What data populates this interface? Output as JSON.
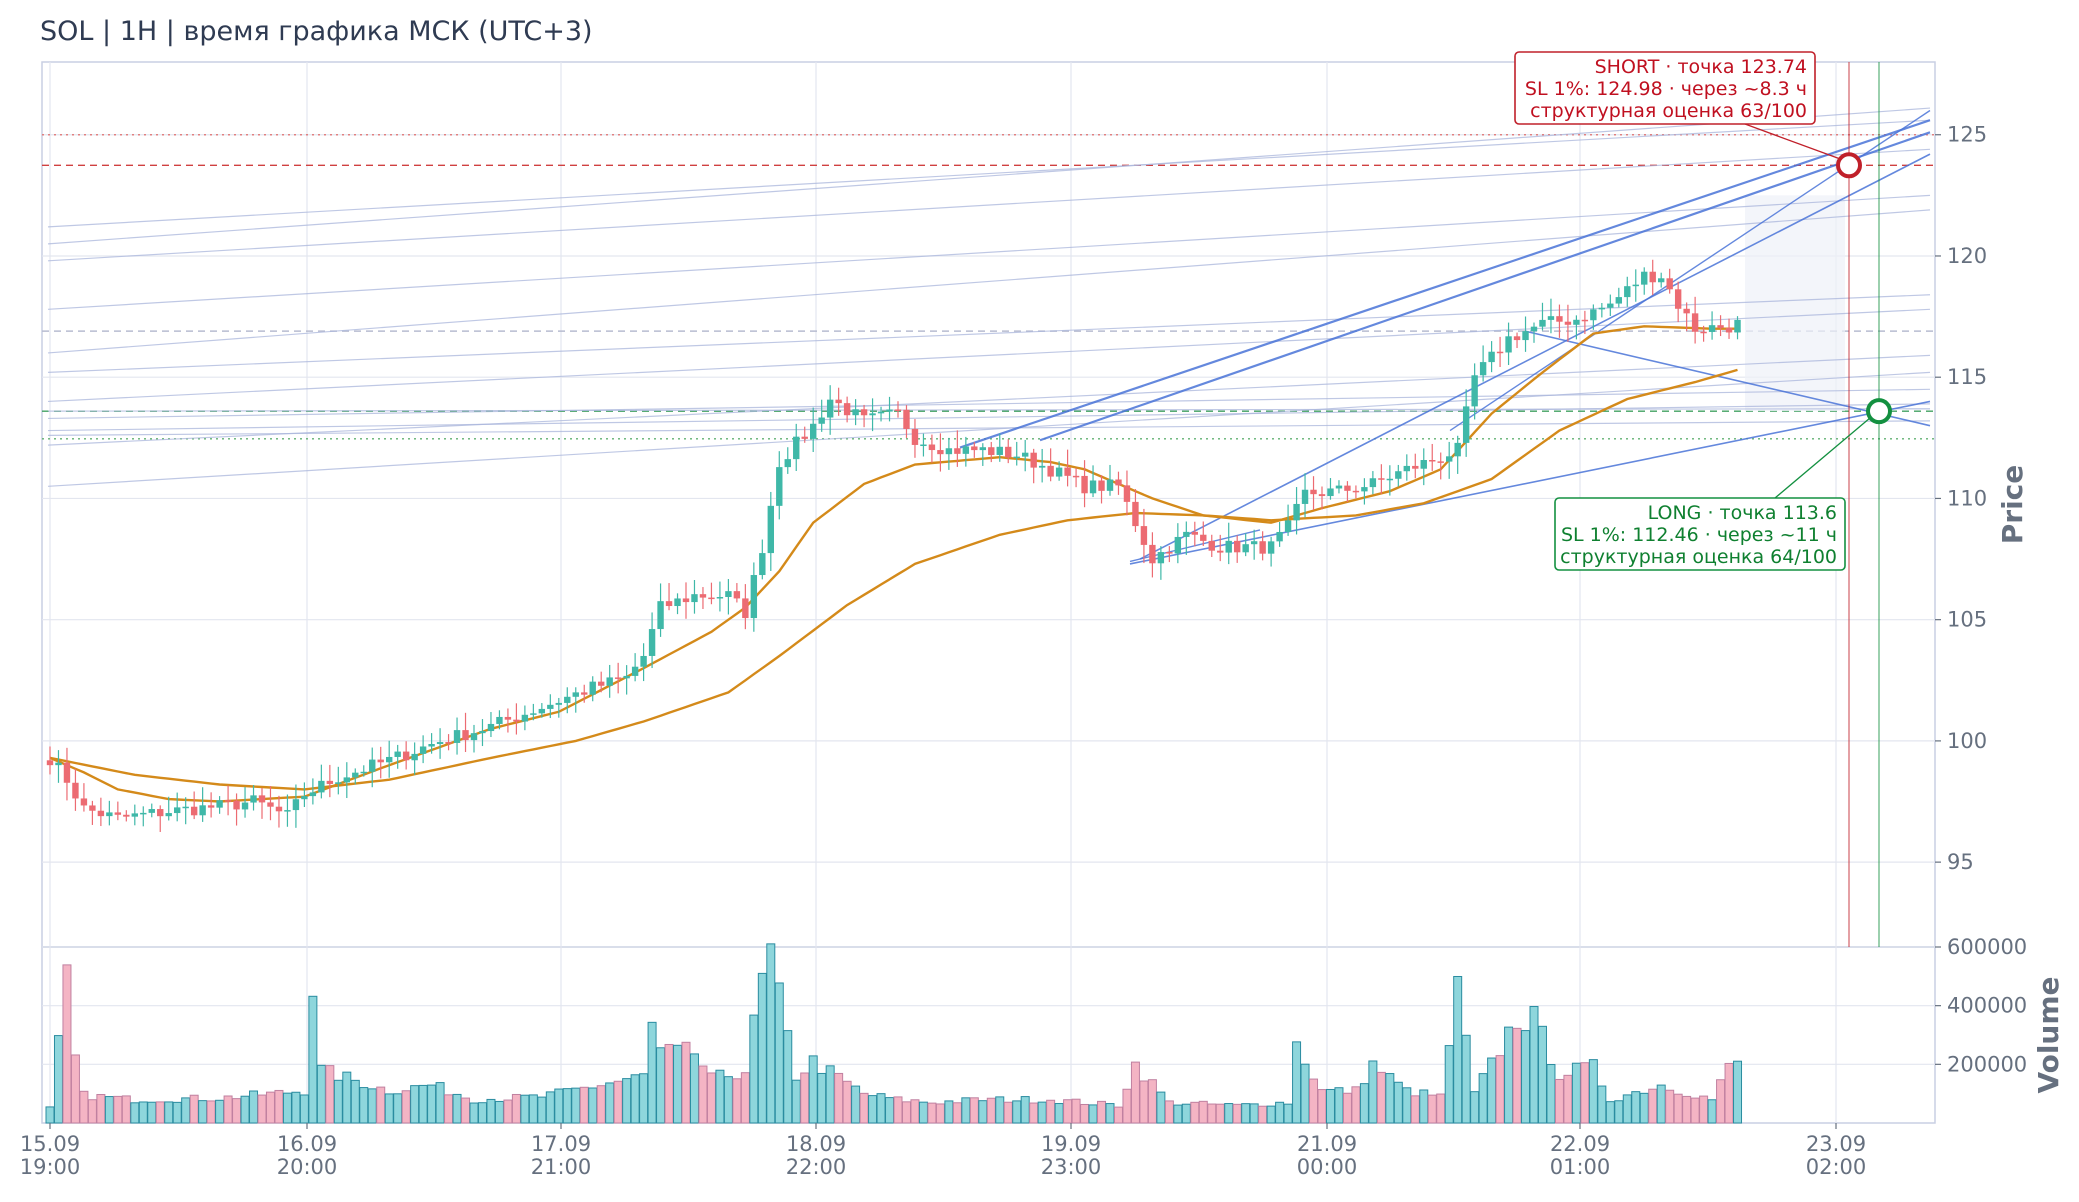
{
  "title": "SOL | 1H | время графика МСК (UTC+3)",
  "colors": {
    "bull": "#3fb8a8",
    "bear": "#ec6b72",
    "ema": "#d48a1a",
    "grid": "#e3e6ef",
    "trend": "#4a74d8",
    "short": "#c0202a",
    "long": "#139040",
    "vol_bull": "#8ed6dc",
    "vol_bear": "#f4b4c4"
  },
  "chart_data": {
    "type": "candlestick",
    "price_axis": {
      "label": "Price",
      "range": [
        91.5,
        128
      ],
      "ticks": [
        95,
        100,
        105,
        110,
        115,
        120,
        125
      ]
    },
    "volume_axis": {
      "label": "Volume",
      "range": [
        0,
        600000
      ],
      "ticks": [
        200000,
        400000,
        600000
      ],
      "tick_labels": [
        "200000",
        "400000",
        "600000"
      ]
    },
    "x_ticks": [
      {
        "date": "15.09",
        "time": "19:00"
      },
      {
        "date": "16.09",
        "time": "20:00"
      },
      {
        "date": "17.09",
        "time": "21:00"
      },
      {
        "date": "18.09",
        "time": "22:00"
      },
      {
        "date": "19.09",
        "time": "23:00"
      },
      {
        "date": "21.09",
        "time": "00:00"
      },
      {
        "date": "22.09",
        "time": "01:00"
      },
      {
        "date": "23.09",
        "time": "02:00"
      }
    ],
    "candle_count": 200,
    "close_anchors": [
      [
        0,
        99.3
      ],
      [
        2,
        98.4
      ],
      [
        4,
        97.2
      ],
      [
        8,
        96.8
      ],
      [
        14,
        97.1
      ],
      [
        20,
        97.3
      ],
      [
        24,
        97.5
      ],
      [
        28,
        96.9
      ],
      [
        30,
        97.8
      ],
      [
        34,
        98.5
      ],
      [
        40,
        99.2
      ],
      [
        46,
        100.0
      ],
      [
        52,
        100.6
      ],
      [
        58,
        101.4
      ],
      [
        64,
        102.2
      ],
      [
        68,
        102.6
      ],
      [
        70,
        103.5
      ],
      [
        72,
        105.5
      ],
      [
        76,
        106.0
      ],
      [
        80,
        106.0
      ],
      [
        82,
        105.3
      ],
      [
        84,
        108.0
      ],
      [
        86,
        111.5
      ],
      [
        90,
        113.0
      ],
      [
        92,
        114.1
      ],
      [
        96,
        113.2
      ],
      [
        100,
        113.5
      ],
      [
        102,
        112.5
      ],
      [
        106,
        112.0
      ],
      [
        110,
        112.0
      ],
      [
        114,
        111.8
      ],
      [
        118,
        111.2
      ],
      [
        122,
        110.5
      ],
      [
        126,
        110.5
      ],
      [
        128,
        109.0
      ],
      [
        130,
        107.5
      ],
      [
        134,
        108.5
      ],
      [
        138,
        108.0
      ],
      [
        144,
        108.0
      ],
      [
        146,
        108.8
      ],
      [
        148,
        110.2
      ],
      [
        152,
        110.3
      ],
      [
        156,
        110.6
      ],
      [
        160,
        111.2
      ],
      [
        164,
        111.7
      ],
      [
        166,
        112.0
      ],
      [
        168,
        115.0
      ],
      [
        172,
        116.6
      ],
      [
        176,
        117.2
      ],
      [
        180,
        117.4
      ],
      [
        184,
        118.0
      ],
      [
        188,
        119.2
      ],
      [
        190,
        119.2
      ],
      [
        192,
        118.0
      ],
      [
        194,
        117.0
      ],
      [
        198,
        117.1
      ],
      [
        199,
        117.2
      ]
    ],
    "ema_fast_anchors": [
      [
        0,
        99.3
      ],
      [
        4,
        98.7
      ],
      [
        8,
        98.0
      ],
      [
        14,
        97.6
      ],
      [
        20,
        97.5
      ],
      [
        30,
        97.7
      ],
      [
        40,
        99.0
      ],
      [
        52,
        100.5
      ],
      [
        60,
        101.2
      ],
      [
        70,
        103.0
      ],
      [
        78,
        104.5
      ],
      [
        82,
        105.5
      ],
      [
        86,
        107.0
      ],
      [
        90,
        109.0
      ],
      [
        96,
        110.6
      ],
      [
        102,
        111.4
      ],
      [
        112,
        111.7
      ],
      [
        118,
        111.5
      ],
      [
        122,
        111.2
      ],
      [
        130,
        110.0
      ],
      [
        136,
        109.3
      ],
      [
        144,
        109.0
      ],
      [
        150,
        109.6
      ],
      [
        158,
        110.3
      ],
      [
        164,
        111.2
      ],
      [
        170,
        113.5
      ],
      [
        176,
        115.2
      ],
      [
        182,
        116.8
      ],
      [
        188,
        117.1
      ],
      [
        196,
        117.0
      ],
      [
        199,
        117.0
      ]
    ],
    "ema_slow_anchors": [
      [
        0,
        99.3
      ],
      [
        10,
        98.6
      ],
      [
        20,
        98.2
      ],
      [
        30,
        98.0
      ],
      [
        40,
        98.4
      ],
      [
        52,
        99.3
      ],
      [
        62,
        100.0
      ],
      [
        70,
        100.8
      ],
      [
        80,
        102.0
      ],
      [
        86,
        103.5
      ],
      [
        94,
        105.6
      ],
      [
        102,
        107.3
      ],
      [
        112,
        108.5
      ],
      [
        120,
        109.1
      ],
      [
        128,
        109.4
      ],
      [
        136,
        109.3
      ],
      [
        144,
        109.1
      ],
      [
        154,
        109.3
      ],
      [
        162,
        109.8
      ],
      [
        170,
        110.8
      ],
      [
        178,
        112.8
      ],
      [
        186,
        114.1
      ],
      [
        194,
        114.8
      ],
      [
        199,
        115.3
      ]
    ],
    "volume_anchors": [
      [
        0,
        50000
      ],
      [
        2,
        480000
      ],
      [
        3,
        220000
      ],
      [
        4,
        95000
      ],
      [
        10,
        80000
      ],
      [
        20,
        85000
      ],
      [
        30,
        110000
      ],
      [
        31,
        470000
      ],
      [
        32,
        180000
      ],
      [
        40,
        110000
      ],
      [
        45,
        130000
      ],
      [
        50,
        80000
      ],
      [
        58,
        90000
      ],
      [
        70,
        160000
      ],
      [
        71,
        330000
      ],
      [
        72,
        240000
      ],
      [
        76,
        240000
      ],
      [
        78,
        150000
      ],
      [
        82,
        180000
      ],
      [
        84,
        480000
      ],
      [
        85,
        570000
      ],
      [
        86,
        420000
      ],
      [
        88,
        160000
      ],
      [
        90,
        210000
      ],
      [
        96,
        100000
      ],
      [
        100,
        80000
      ],
      [
        104,
        70000
      ],
      [
        110,
        80000
      ],
      [
        118,
        80000
      ],
      [
        126,
        60000
      ],
      [
        128,
        200000
      ],
      [
        132,
        70000
      ],
      [
        140,
        60000
      ],
      [
        146,
        70000
      ],
      [
        147,
        270000
      ],
      [
        150,
        110000
      ],
      [
        154,
        110000
      ],
      [
        156,
        200000
      ],
      [
        160,
        110000
      ],
      [
        164,
        90000
      ],
      [
        168,
        100000
      ],
      [
        166,
        450000
      ],
      [
        170,
        200000
      ],
      [
        173,
        360000
      ],
      [
        175,
        350000
      ],
      [
        178,
        170000
      ],
      [
        182,
        190000
      ],
      [
        184,
        80000
      ],
      [
        190,
        130000
      ],
      [
        196,
        80000
      ],
      [
        198,
        190000
      ],
      [
        199,
        210000
      ]
    ],
    "horizontal_levels": [
      {
        "price": 125.0,
        "style": "dotted",
        "color": "#e08080"
      },
      {
        "price": 123.74,
        "style": "dashed",
        "color": "#d04040"
      },
      {
        "price": 116.9,
        "style": "dashed",
        "color": "#b8bcd0"
      },
      {
        "price": 113.6,
        "style": "dashed",
        "color": "#40a060"
      },
      {
        "price": 112.46,
        "style": "dotted",
        "color": "#60b070"
      }
    ],
    "signals": [
      {
        "side": "short",
        "price": 123.74,
        "line1": "SHORT · точка 123.74",
        "line2": "SL 1%: 124.98 · через ~8.3 ч",
        "line3": "структурная оценка 63/100"
      },
      {
        "side": "long",
        "price": 113.6,
        "line1": "LONG · точка 113.6",
        "line2": "SL 1%: 112.46 · через ~11 ч",
        "line3": "структурная оценка 64/100"
      }
    ],
    "grid": true
  }
}
